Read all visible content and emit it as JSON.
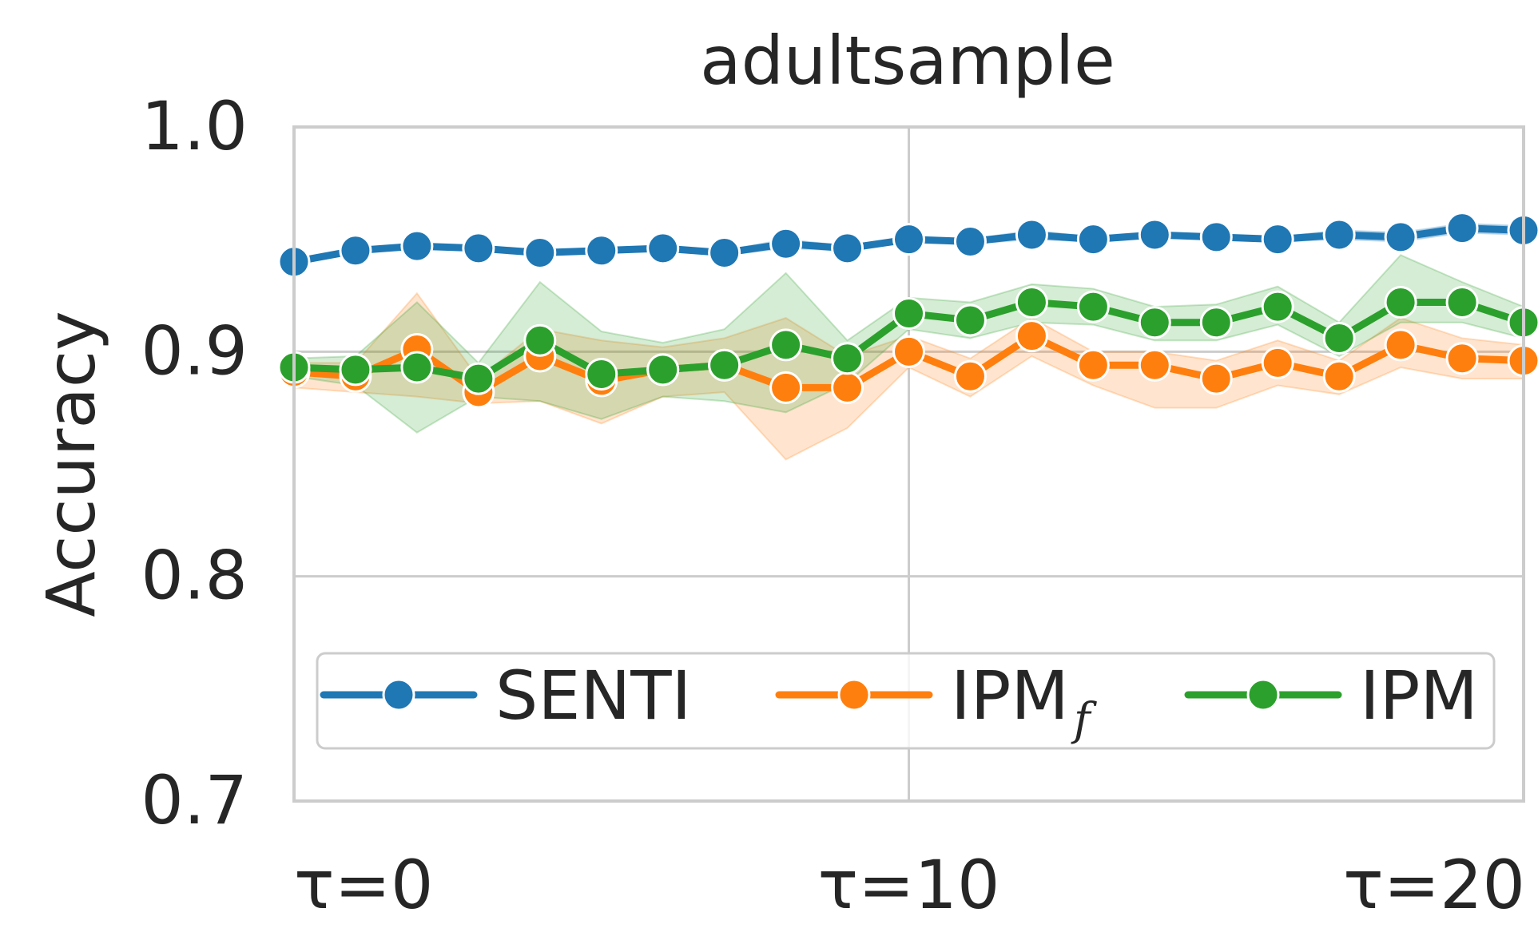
{
  "chart_data": {
    "type": "line",
    "title": "adultsample",
    "xlabel": "",
    "ylabel": "Accuracy",
    "x": [
      0,
      1,
      2,
      3,
      4,
      5,
      6,
      7,
      8,
      9,
      10,
      11,
      12,
      13,
      14,
      15,
      16,
      17,
      18,
      19,
      20
    ],
    "xlim": [
      0,
      20
    ],
    "ylim": [
      0.7,
      1.0
    ],
    "xticks": [
      0,
      10,
      20
    ],
    "xtick_labels": [
      "τ=0",
      "τ=10",
      "τ=20"
    ],
    "yticks": [
      0.7,
      0.8,
      0.9,
      1.0
    ],
    "ytick_labels": [
      "0.7",
      "0.8",
      "0.9",
      "1.0"
    ],
    "grid": true,
    "legend_position": "lower-center",
    "legend_ncol": 3,
    "series": [
      {
        "name": "SENTI",
        "color": "#1f77b4",
        "values": [
          0.94,
          0.945,
          0.947,
          0.946,
          0.944,
          0.945,
          0.946,
          0.944,
          0.948,
          0.946,
          0.95,
          0.949,
          0.952,
          0.95,
          0.952,
          0.951,
          0.95,
          0.952,
          0.951,
          0.955,
          0.954
        ],
        "lower": [
          0.939,
          0.944,
          0.946,
          0.945,
          0.943,
          0.944,
          0.945,
          0.943,
          0.946,
          0.945,
          0.949,
          0.948,
          0.95,
          0.949,
          0.951,
          0.95,
          0.949,
          0.95,
          0.949,
          0.953,
          0.952
        ],
        "upper": [
          0.941,
          0.946,
          0.948,
          0.947,
          0.945,
          0.946,
          0.947,
          0.945,
          0.95,
          0.947,
          0.951,
          0.95,
          0.954,
          0.951,
          0.953,
          0.952,
          0.951,
          0.954,
          0.953,
          0.957,
          0.956
        ]
      },
      {
        "name": "IPM",
        "subscript": "f",
        "color": "#ff7f0e",
        "values": [
          0.891,
          0.889,
          0.901,
          0.882,
          0.898,
          0.887,
          0.892,
          0.894,
          0.884,
          0.884,
          0.9,
          0.889,
          0.907,
          0.894,
          0.894,
          0.888,
          0.895,
          0.889,
          0.903,
          0.897,
          0.896
        ],
        "lower": [
          0.884,
          0.882,
          0.88,
          0.877,
          0.878,
          0.868,
          0.88,
          0.882,
          0.852,
          0.866,
          0.893,
          0.88,
          0.898,
          0.885,
          0.875,
          0.875,
          0.885,
          0.881,
          0.893,
          0.888,
          0.888
        ],
        "upper": [
          0.895,
          0.895,
          0.926,
          0.888,
          0.91,
          0.905,
          0.902,
          0.906,
          0.915,
          0.898,
          0.907,
          0.897,
          0.915,
          0.9,
          0.9,
          0.896,
          0.905,
          0.896,
          0.915,
          0.906,
          0.903
        ]
      },
      {
        "name": "IPM",
        "color": "#2ca02c",
        "values": [
          0.893,
          0.892,
          0.893,
          0.888,
          0.905,
          0.89,
          0.892,
          0.894,
          0.903,
          0.897,
          0.917,
          0.914,
          0.922,
          0.92,
          0.913,
          0.913,
          0.92,
          0.906,
          0.922,
          0.922,
          0.913
        ],
        "lower": [
          0.889,
          0.885,
          0.864,
          0.88,
          0.878,
          0.87,
          0.88,
          0.878,
          0.873,
          0.886,
          0.91,
          0.906,
          0.913,
          0.912,
          0.905,
          0.905,
          0.912,
          0.898,
          0.913,
          0.913,
          0.906
        ],
        "upper": [
          0.897,
          0.898,
          0.922,
          0.895,
          0.931,
          0.909,
          0.904,
          0.91,
          0.935,
          0.905,
          0.924,
          0.922,
          0.93,
          0.928,
          0.92,
          0.921,
          0.929,
          0.913,
          0.943,
          0.931,
          0.92
        ]
      }
    ]
  }
}
